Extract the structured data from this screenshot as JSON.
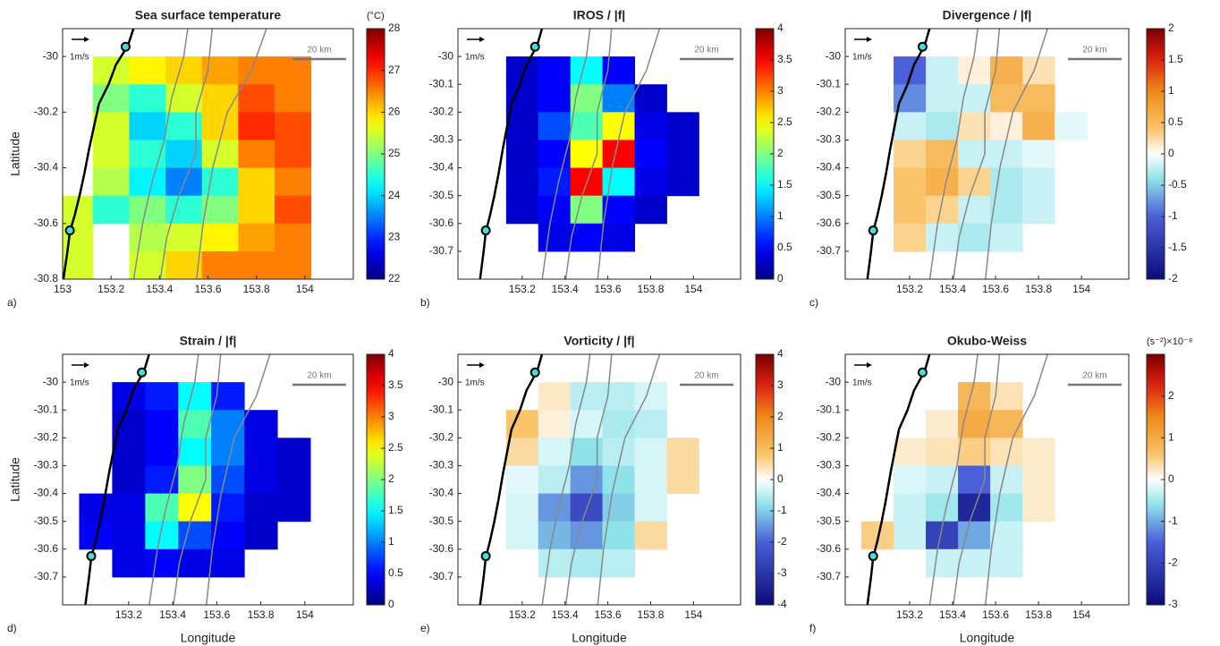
{
  "chart_data": [
    {
      "type": "heatmap",
      "title": "Sea surface temperature",
      "panel_label": "a)",
      "ylabel": "Latitude",
      "colorbar_label": "(°C)",
      "reference_arrow_label": "1m/s",
      "scale_bar_label": "20 km",
      "colormap": "jet",
      "xlim": [
        153,
        154.2
      ],
      "ylim": [
        -30.8,
        -29.9
      ],
      "xticks": [
        153,
        153.2,
        153.4,
        153.6,
        153.8,
        154
      ],
      "yticks": [
        -30.8,
        -30.6,
        -30.4,
        -30.2,
        -30
      ],
      "clim": [
        22,
        28
      ],
      "cticks": [
        22,
        23,
        24,
        25,
        26,
        27,
        28
      ],
      "x": [
        153.05,
        153.2,
        153.35,
        153.5,
        153.65,
        153.8,
        153.95
      ],
      "y": [
        -30.05,
        -30.15,
        -30.25,
        -30.35,
        -30.45,
        -30.55,
        -30.65,
        -30.75
      ],
      "z": [
        [
          null,
          25.5,
          25.8,
          26.0,
          26.3,
          26.5,
          26.5
        ],
        [
          null,
          25.0,
          24.5,
          25.5,
          26.0,
          26.8,
          26.5
        ],
        [
          null,
          25.5,
          24.0,
          24.5,
          26.0,
          27.0,
          26.8
        ],
        [
          null,
          25.5,
          24.5,
          24.0,
          25.5,
          26.5,
          26.8
        ],
        [
          null,
          25.3,
          24.2,
          23.5,
          24.5,
          26.0,
          26.5
        ],
        [
          25.5,
          24.5,
          25.0,
          24.5,
          25.0,
          26.0,
          26.8
        ],
        [
          25.5,
          null,
          25.3,
          25.5,
          25.8,
          26.3,
          26.5
        ],
        [
          25.5,
          null,
          25.5,
          26.0,
          26.5,
          26.5,
          26.5
        ]
      ]
    },
    {
      "type": "heatmap",
      "title": "IROS / |f|",
      "panel_label": "b)",
      "reference_arrow_label": "1m/s",
      "scale_bar_label": "20 km",
      "colormap": "jet",
      "xlim": [
        152.9,
        154.22
      ],
      "ylim": [
        -30.8,
        -29.9
      ],
      "xticks": [
        153.2,
        153.4,
        153.6,
        153.8,
        154
      ],
      "yticks": [
        -30.7,
        -30.6,
        -30.5,
        -30.4,
        -30.3,
        -30.2,
        -30.1,
        -30
      ],
      "clim": [
        0,
        4
      ],
      "cticks": [
        0,
        0.5,
        1,
        1.5,
        2,
        2.5,
        3,
        3.5,
        4
      ],
      "x": [
        153.05,
        153.2,
        153.35,
        153.5,
        153.65,
        153.8,
        153.95
      ],
      "y": [
        -30.05,
        -30.15,
        -30.25,
        -30.35,
        -30.45,
        -30.55,
        -30.65
      ],
      "z": [
        [
          null,
          0.3,
          0.5,
          1.5,
          0.5,
          null,
          null
        ],
        [
          null,
          0.3,
          0.5,
          2.0,
          1.0,
          0.3,
          null
        ],
        [
          null,
          0.3,
          0.8,
          1.8,
          2.5,
          0.4,
          0.3
        ],
        [
          null,
          0.3,
          0.5,
          2.5,
          3.5,
          0.5,
          0.3
        ],
        [
          null,
          0.3,
          0.6,
          3.5,
          1.5,
          0.4,
          0.3
        ],
        [
          null,
          0.3,
          0.5,
          2.0,
          0.5,
          0.3,
          null
        ],
        [
          null,
          null,
          0.4,
          0.5,
          0.4,
          null,
          null
        ]
      ]
    },
    {
      "type": "heatmap",
      "title": "Divergence / |f|",
      "panel_label": "c)",
      "reference_arrow_label": "1m/s",
      "scale_bar_label": "20 km",
      "colormap": "diverging",
      "xlim": [
        152.9,
        154.22
      ],
      "ylim": [
        -30.8,
        -29.9
      ],
      "xticks": [
        153.2,
        153.4,
        153.6,
        153.8,
        154
      ],
      "yticks": [
        -30.7,
        -30.6,
        -30.5,
        -30.4,
        -30.3,
        -30.2,
        -30.1,
        -30
      ],
      "clim": [
        -2,
        2
      ],
      "cticks": [
        -2,
        -1.5,
        -1,
        -0.5,
        0,
        0.5,
        1,
        1.5,
        2
      ],
      "x": [
        153.05,
        153.2,
        153.35,
        153.5,
        153.65,
        153.8,
        153.95
      ],
      "y": [
        -30.05,
        -30.15,
        -30.25,
        -30.35,
        -30.45,
        -30.55,
        -30.65
      ],
      "z": [
        [
          null,
          -1.0,
          -0.2,
          0.1,
          0.6,
          0.2,
          null
        ],
        [
          null,
          -0.8,
          -0.2,
          -0.2,
          0.5,
          0.5,
          null
        ],
        [
          null,
          -0.2,
          -0.3,
          0.2,
          0.1,
          0.6,
          -0.1
        ],
        [
          null,
          0.3,
          0.5,
          -0.2,
          -0.2,
          -0.1,
          null
        ],
        [
          null,
          0.4,
          0.6,
          0.3,
          -0.3,
          -0.2,
          null
        ],
        [
          null,
          0.4,
          0.3,
          -0.2,
          -0.3,
          -0.2,
          null
        ],
        [
          null,
          0.3,
          -0.2,
          -0.3,
          -0.2,
          null,
          null
        ]
      ]
    },
    {
      "type": "heatmap",
      "title": "Strain / |f|",
      "panel_label": "d)",
      "ylabel": "Latitude",
      "xlabel": "Longitude",
      "reference_arrow_label": "1m/s",
      "scale_bar_label": "20 km",
      "colormap": "jet",
      "xlim": [
        152.9,
        154.22
      ],
      "ylim": [
        -30.8,
        -29.9
      ],
      "xticks": [
        153.2,
        153.4,
        153.6,
        153.8,
        154
      ],
      "yticks": [
        -30.7,
        -30.6,
        -30.5,
        -30.4,
        -30.3,
        -30.2,
        -30.1,
        -30
      ],
      "clim": [
        0,
        4
      ],
      "cticks": [
        0,
        0.5,
        1,
        1.5,
        2,
        2.5,
        3,
        3.5,
        4
      ],
      "x": [
        153.05,
        153.2,
        153.35,
        153.5,
        153.65,
        153.8,
        153.95
      ],
      "y": [
        -30.05,
        -30.15,
        -30.25,
        -30.35,
        -30.45,
        -30.55,
        -30.65
      ],
      "z": [
        [
          null,
          0.4,
          0.6,
          1.5,
          0.6,
          null,
          null
        ],
        [
          null,
          0.3,
          0.5,
          1.8,
          1.0,
          0.4,
          null
        ],
        [
          null,
          0.3,
          0.5,
          1.5,
          1.0,
          0.4,
          0.3
        ],
        [
          null,
          0.3,
          0.6,
          2.0,
          0.8,
          0.4,
          0.3
        ],
        [
          0.4,
          0.4,
          1.8,
          2.5,
          0.6,
          0.3,
          0.3
        ],
        [
          0.5,
          0.4,
          1.5,
          0.8,
          0.5,
          0.3,
          null
        ],
        [
          null,
          0.4,
          0.5,
          0.4,
          0.4,
          null,
          null
        ]
      ]
    },
    {
      "type": "heatmap",
      "title": "Vorticity / |f|",
      "panel_label": "e)",
      "xlabel": "Longitude",
      "reference_arrow_label": "1m/s",
      "scale_bar_label": "20 km",
      "colormap": "diverging",
      "xlim": [
        152.9,
        154.22
      ],
      "ylim": [
        -30.8,
        -29.9
      ],
      "xticks": [
        153.2,
        153.4,
        153.6,
        153.8,
        154
      ],
      "yticks": [
        -30.7,
        -30.6,
        -30.5,
        -30.4,
        -30.3,
        -30.2,
        -30.1,
        -30
      ],
      "clim": [
        -4,
        4
      ],
      "cticks": [
        -4,
        -3,
        -2,
        -1,
        0,
        1,
        2,
        3,
        4
      ],
      "x": [
        153.05,
        153.2,
        153.35,
        153.5,
        153.65,
        153.8,
        153.95
      ],
      "y": [
        -30.05,
        -30.15,
        -30.25,
        -30.35,
        -30.45,
        -30.55,
        -30.65
      ],
      "z": [
        [
          null,
          null,
          0.3,
          -0.5,
          -0.5,
          -0.3,
          null
        ],
        [
          null,
          0.8,
          0.2,
          -0.3,
          -0.6,
          -0.5,
          null
        ],
        [
          null,
          0.5,
          -0.3,
          -0.8,
          -0.5,
          -0.3,
          0.5
        ],
        [
          null,
          -0.2,
          -0.5,
          -1.5,
          -0.8,
          -0.3,
          0.5
        ],
        [
          null,
          -0.3,
          -1.5,
          -2.5,
          -1.0,
          -0.3,
          null
        ],
        [
          null,
          -0.3,
          -1.2,
          -1.5,
          -0.8,
          0.5,
          null
        ],
        [
          null,
          null,
          -0.5,
          -0.6,
          -0.5,
          null,
          null
        ]
      ]
    },
    {
      "type": "heatmap",
      "title": "Okubo-Weiss",
      "panel_label": "f)",
      "xlabel": "Longitude",
      "colorbar_label": "(s⁻²)×10⁻⁸",
      "reference_arrow_label": "1m/s",
      "scale_bar_label": "20 km",
      "colormap": "diverging",
      "xlim": [
        152.9,
        154.22
      ],
      "ylim": [
        -30.8,
        -29.9
      ],
      "xticks": [
        153.2,
        153.4,
        153.6,
        153.8,
        154
      ],
      "yticks": [
        -30.7,
        -30.6,
        -30.5,
        -30.4,
        -30.3,
        -30.2,
        -30.1,
        -30
      ],
      "clim": [
        -3,
        3
      ],
      "cticks": [
        -3,
        -2,
        -1,
        0,
        1,
        2
      ],
      "x": [
        153.05,
        153.2,
        153.35,
        153.5,
        153.65,
        153.8,
        153.95
      ],
      "y": [
        -30.05,
        -30.15,
        -30.25,
        -30.35,
        -30.45,
        -30.55,
        -30.65
      ],
      "z": [
        [
          null,
          null,
          null,
          0.8,
          0.3,
          null,
          null
        ],
        [
          null,
          null,
          0.2,
          1.0,
          0.8,
          null,
          null
        ],
        [
          null,
          0.2,
          0.3,
          0.5,
          0.3,
          0.2,
          null
        ],
        [
          null,
          -0.2,
          -0.3,
          -1.5,
          -0.3,
          0.2,
          null
        ],
        [
          null,
          -0.3,
          -0.5,
          -2.5,
          -0.5,
          0.2,
          null
        ],
        [
          0.5,
          -0.3,
          -2.0,
          -1.0,
          -0.3,
          null,
          null
        ],
        [
          null,
          null,
          -0.3,
          -0.3,
          -0.3,
          null,
          null
        ]
      ]
    }
  ]
}
